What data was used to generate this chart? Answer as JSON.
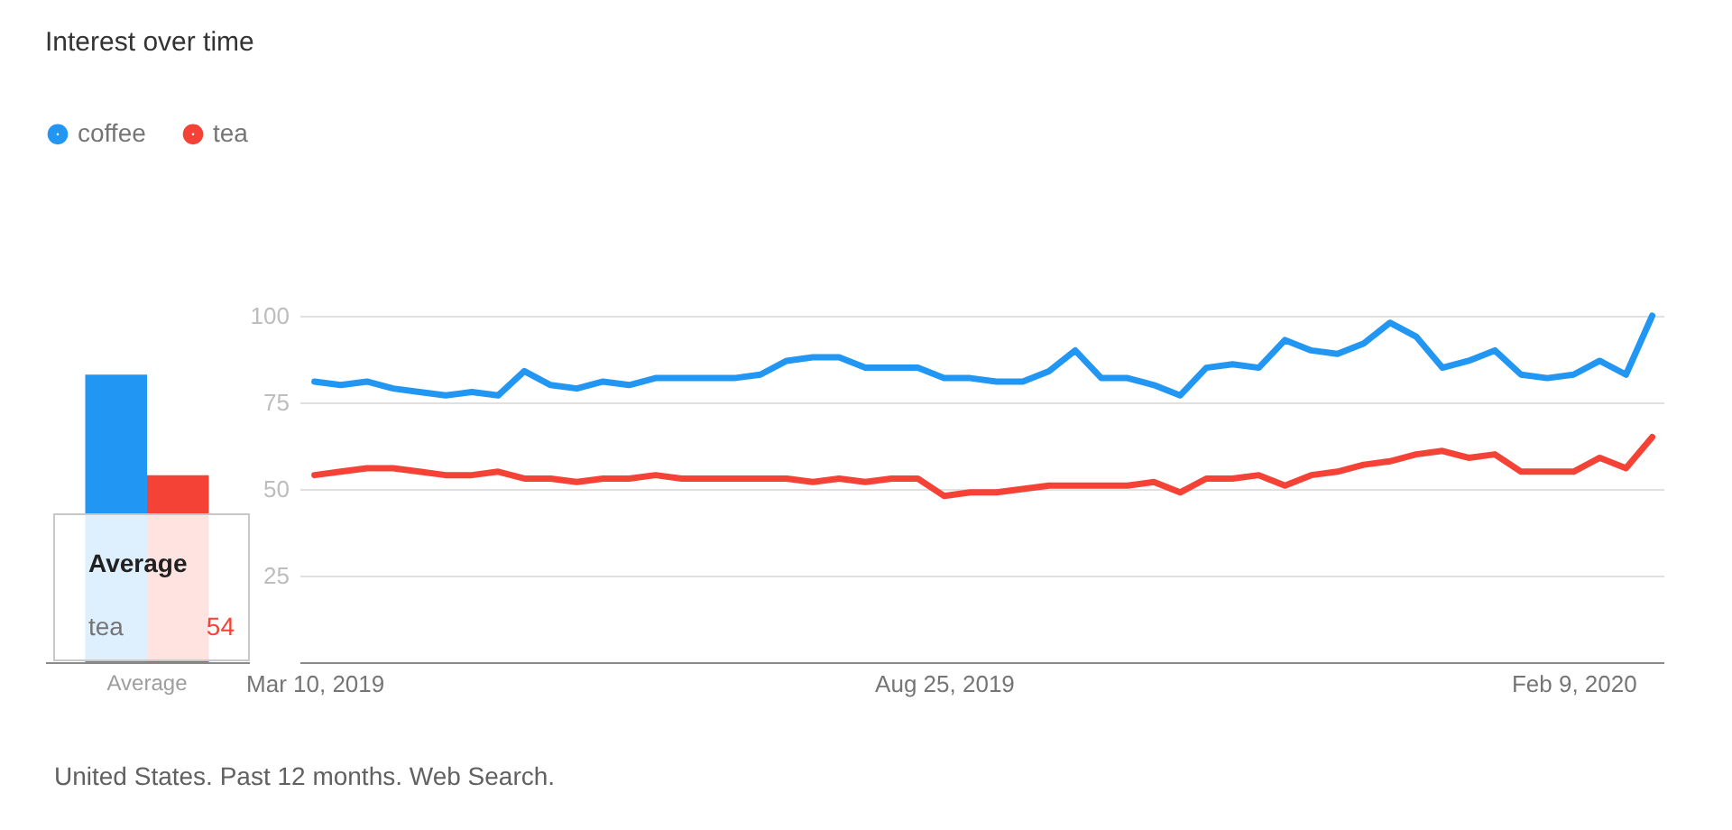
{
  "chart_data": [
    {
      "type": "bar",
      "title": "Interest over time",
      "categories": [
        "Average"
      ],
      "series": [
        {
          "color": "#2196f3",
          "values": [
            83
          ]
        },
        {
          "color": "#f44336",
          "values": [
            54
          ]
        }
      ],
      "ylim": [
        0,
        100
      ],
      "tick_labels": "x",
      "annotations": [
        "Average",
        "tea",
        "54"
      ]
    },
    {
      "type": "line",
      "x": [
        "2019-03-10",
        "2019-03-17",
        "2019-03-24",
        "2019-03-31",
        "2019-04-07",
        "2019-04-14",
        "2019-04-21",
        "2019-04-28",
        "2019-05-05",
        "2019-05-12",
        "2019-05-19",
        "2019-05-26",
        "2019-06-02",
        "2019-06-09",
        "2019-06-16",
        "2019-06-23",
        "2019-06-30",
        "2019-07-07",
        "2019-07-14",
        "2019-07-21",
        "2019-07-28",
        "2019-08-04",
        "2019-08-11",
        "2019-08-18",
        "2019-08-25",
        "2019-09-01",
        "2019-09-08",
        "2019-09-15",
        "2019-09-22",
        "2019-09-29",
        "2019-10-06",
        "2019-10-13",
        "2019-10-20",
        "2019-10-27",
        "2019-11-03",
        "2019-11-10",
        "2019-11-17",
        "2019-11-24",
        "2019-12-01",
        "2019-12-08",
        "2019-12-15",
        "2019-12-22",
        "2019-12-29",
        "2020-01-05",
        "2020-01-12",
        "2020-01-19",
        "2020-01-26",
        "2020-02-02",
        "2020-02-09",
        "2020-02-16",
        "2020-02-23",
        "2020-03-01"
      ],
      "series": [
        {
          "name": "coffee",
          "color": "#2196f3",
          "values": [
            81,
            80,
            81,
            79,
            78,
            77,
            78,
            77,
            84,
            80,
            79,
            81,
            80,
            82,
            82,
            82,
            82,
            83,
            87,
            88,
            88,
            85,
            85,
            85,
            82,
            82,
            81,
            81,
            84,
            90,
            82,
            82,
            80,
            77,
            85,
            86,
            85,
            93,
            90,
            89,
            92,
            98,
            94,
            85,
            87,
            90,
            83,
            82,
            83,
            87,
            83,
            100
          ]
        },
        {
          "name": "tea",
          "color": "#f44336",
          "values": [
            54,
            55,
            56,
            56,
            55,
            54,
            54,
            55,
            53,
            53,
            52,
            53,
            53,
            54,
            53,
            53,
            53,
            53,
            53,
            52,
            53,
            52,
            53,
            53,
            48,
            49,
            49,
            50,
            51,
            51,
            51,
            51,
            52,
            49,
            53,
            53,
            54,
            51,
            54,
            55,
            57,
            58,
            60,
            61,
            59,
            60,
            55,
            55,
            55,
            59,
            56,
            65
          ]
        }
      ],
      "xlim": [
        "2019-03-06",
        "2020-03-04"
      ],
      "xticks": [
        {
          "value": "2019-03-10",
          "label": "Mar 10, 2019"
        },
        {
          "value": "2019-08-25",
          "label": "Aug 25, 2019"
        },
        {
          "value": "2020-02-09",
          "label": "Feb 9, 2020"
        }
      ],
      "ylim": [
        0,
        100
      ],
      "yticks": [
        25,
        50,
        75,
        100
      ],
      "grid": "y",
      "legend": "top left",
      "annotations": [
        "United States. Past 12 months. Web Search."
      ]
    }
  ]
}
